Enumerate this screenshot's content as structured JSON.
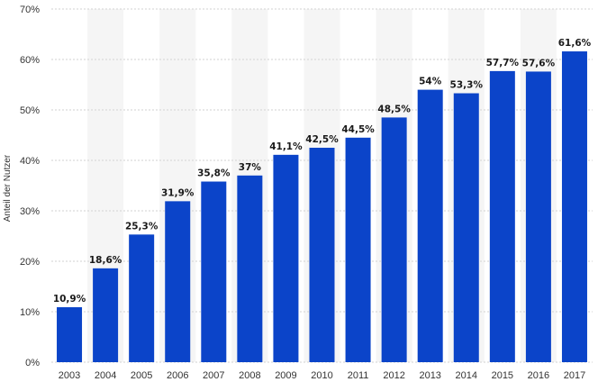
{
  "chart_data": {
    "type": "bar",
    "categories": [
      "2003",
      "2004",
      "2005",
      "2006",
      "2007",
      "2008",
      "2009",
      "2010",
      "2011",
      "2012",
      "2013",
      "2014",
      "2015",
      "2016",
      "2017"
    ],
    "values": [
      10.9,
      18.6,
      25.3,
      31.9,
      35.8,
      37,
      41.1,
      42.5,
      44.5,
      48.5,
      54,
      53.3,
      57.7,
      57.6,
      61.6
    ],
    "data_labels": [
      "10,9%",
      "18,6%",
      "25,3%",
      "31,9%",
      "35,8%",
      "37%",
      "41,1%",
      "42,5%",
      "44,5%",
      "48,5%",
      "54%",
      "53,3%",
      "57,7%",
      "57,6%",
      "61,6%"
    ],
    "ylabel": "Anteil der Nutzer",
    "xlabel": "",
    "ylim": [
      0,
      70
    ],
    "yticks": [
      0,
      10,
      20,
      30,
      40,
      50,
      60,
      70
    ],
    "ytick_labels": [
      "0%",
      "10%",
      "20%",
      "30%",
      "40%",
      "50%",
      "60%",
      "70%"
    ],
    "grid": true,
    "colors": {
      "bar": "#0b44c9",
      "band": "#f5f5f5",
      "grid": "#d2d2d2"
    }
  }
}
